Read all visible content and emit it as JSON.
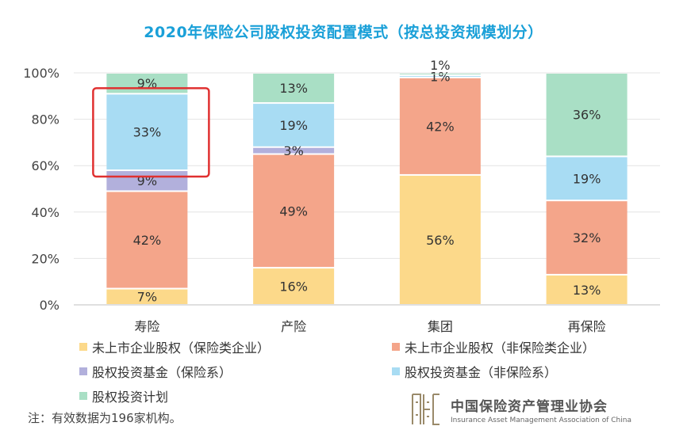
{
  "chart_data": {
    "type": "bar",
    "stacked": true,
    "title": "2020年保险公司股权投资配置模式（按总投资规模划分）",
    "categories": [
      "寿险",
      "产险",
      "集团",
      "再保险"
    ],
    "ylim": [
      0,
      100
    ],
    "yticks": [
      "0%",
      "20%",
      "40%",
      "60%",
      "80%",
      "100%"
    ],
    "ytick_values": [
      0,
      20,
      40,
      60,
      80,
      100
    ],
    "series": [
      {
        "name": "未上市企业股权（保险类企业）",
        "color": "#fcd98a",
        "values": [
          7,
          16,
          56,
          13
        ]
      },
      {
        "name": "未上市企业股权（非保险类企业）",
        "color": "#f4a58a",
        "values": [
          42,
          49,
          42,
          32
        ]
      },
      {
        "name": "股权投资基金（保险系）",
        "color": "#b2b0dc",
        "values": [
          9,
          3,
          0,
          0
        ]
      },
      {
        "name": "股权投资基金（非保险系）",
        "color": "#a8dcf3",
        "values": [
          33,
          19,
          1,
          19
        ]
      },
      {
        "name": "股权投资计划",
        "color": "#a9dfc5",
        "values": [
          9,
          13,
          1,
          36
        ]
      }
    ],
    "data_labels": [
      [
        "7%",
        "16%",
        "56%",
        "13%"
      ],
      [
        "42%",
        "49%",
        "42%",
        "32%"
      ],
      [
        "9%",
        "3%",
        "",
        ""
      ],
      [
        "33%",
        "19%",
        "1%",
        "19%"
      ],
      [
        "9%",
        "13%",
        "1%",
        "36%"
      ]
    ],
    "highlight": {
      "category_index": 0,
      "series_index": 3,
      "color": "#e03030"
    },
    "grid": true,
    "legend_position": "bottom"
  },
  "note": "注：有效数据为196家机构。",
  "logo": {
    "name_cn": "中国保险资产管理业协会",
    "name_en": "Insurance Asset Management Association of China"
  }
}
